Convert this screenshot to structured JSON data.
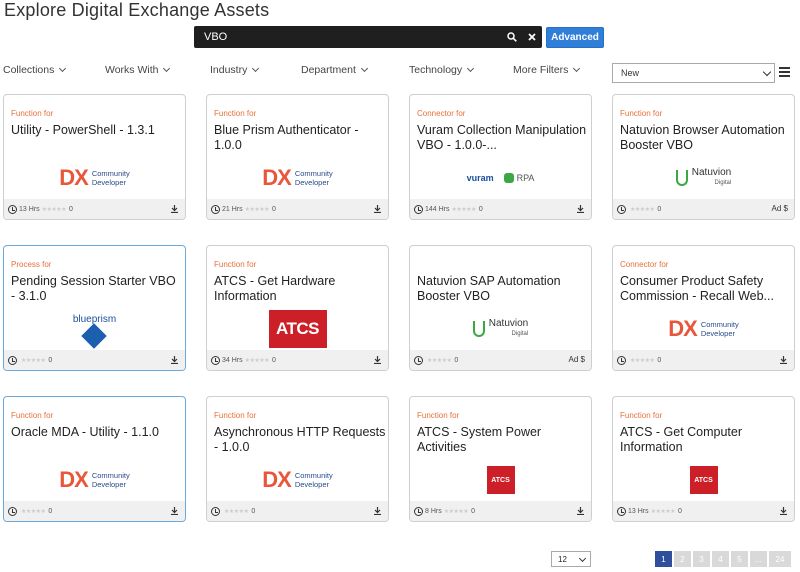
{
  "header": {
    "title": "Explore Digital Exchange Assets"
  },
  "search": {
    "value": "VBO",
    "advanced_label": "Advanced"
  },
  "filters": [
    "Collections",
    "Works With",
    "Industry",
    "Department",
    "Technology",
    "More Filters"
  ],
  "sort": {
    "selected": "New"
  },
  "cards": [
    {
      "type": "Function for",
      "name": "Utility - PowerShell - 1.3.1",
      "logo": "dx",
      "hours": "13 Hrs",
      "downloads": "0",
      "right": ""
    },
    {
      "type": "Function for",
      "name": "Blue Prism Authenticator - 1.0.0",
      "logo": "dx",
      "hours": "21 Hrs",
      "downloads": "0",
      "right": ""
    },
    {
      "type": "Connector for",
      "name": "Vuram Collection Manipulation VBO - 1.0.0-...",
      "logo": "vuram",
      "hours": "144 Hrs",
      "downloads": "0",
      "right": ""
    },
    {
      "type": "Function for",
      "name": "Natuvion Browser Automation Booster VBO",
      "logo": "natuvion",
      "hours": "",
      "downloads": "0",
      "right": "Ad $"
    },
    {
      "type": "Process for",
      "name": "Pending Session Starter VBO - 3.1.0",
      "logo": "blueprism",
      "hours": "",
      "downloads": "0",
      "right": ""
    },
    {
      "type": "Function for",
      "name": "ATCS - Get Hardware Information",
      "logo": "atcs-big",
      "hours": "34 Hrs",
      "downloads": "0",
      "right": ""
    },
    {
      "type": "",
      "name": "Natuvion SAP Automation Booster VBO",
      "logo": "natuvion",
      "hours": "",
      "downloads": "0",
      "right": "Ad $"
    },
    {
      "type": "Connector for",
      "name": "Consumer Product Safety Commission - Recall Web...",
      "logo": "dx",
      "hours": "",
      "downloads": "0",
      "right": ""
    },
    {
      "type": "Function for",
      "name": "Oracle MDA - Utility - 1.1.0",
      "logo": "dx",
      "hours": "",
      "downloads": "0",
      "right": ""
    },
    {
      "type": "Function for",
      "name": "Asynchronous HTTP Requests - 1.0.0",
      "logo": "dx",
      "hours": "",
      "downloads": "0",
      "right": ""
    },
    {
      "type": "Function for",
      "name": "ATCS - System Power Activities",
      "logo": "atcs-small",
      "hours": "8 Hrs",
      "downloads": "0",
      "right": ""
    },
    {
      "type": "Function for",
      "name": "ATCS - Get Computer Information",
      "logo": "atcs-small",
      "hours": "13 Hrs",
      "downloads": "0",
      "right": ""
    }
  ],
  "logos": {
    "dx_mark": "DX",
    "dx_line1": "Community",
    "dx_line2": "Developer",
    "atcs": "ATCS",
    "natuvion": "Natuvion",
    "natuvion_sub": "Digital",
    "vuram": "vuram",
    "rpa": "RPA",
    "blueprism": "blueprism"
  },
  "pagination": {
    "per_page": "12",
    "pages": [
      "1",
      "2",
      "3",
      "4",
      "5",
      "...",
      "24"
    ],
    "active": "1"
  }
}
